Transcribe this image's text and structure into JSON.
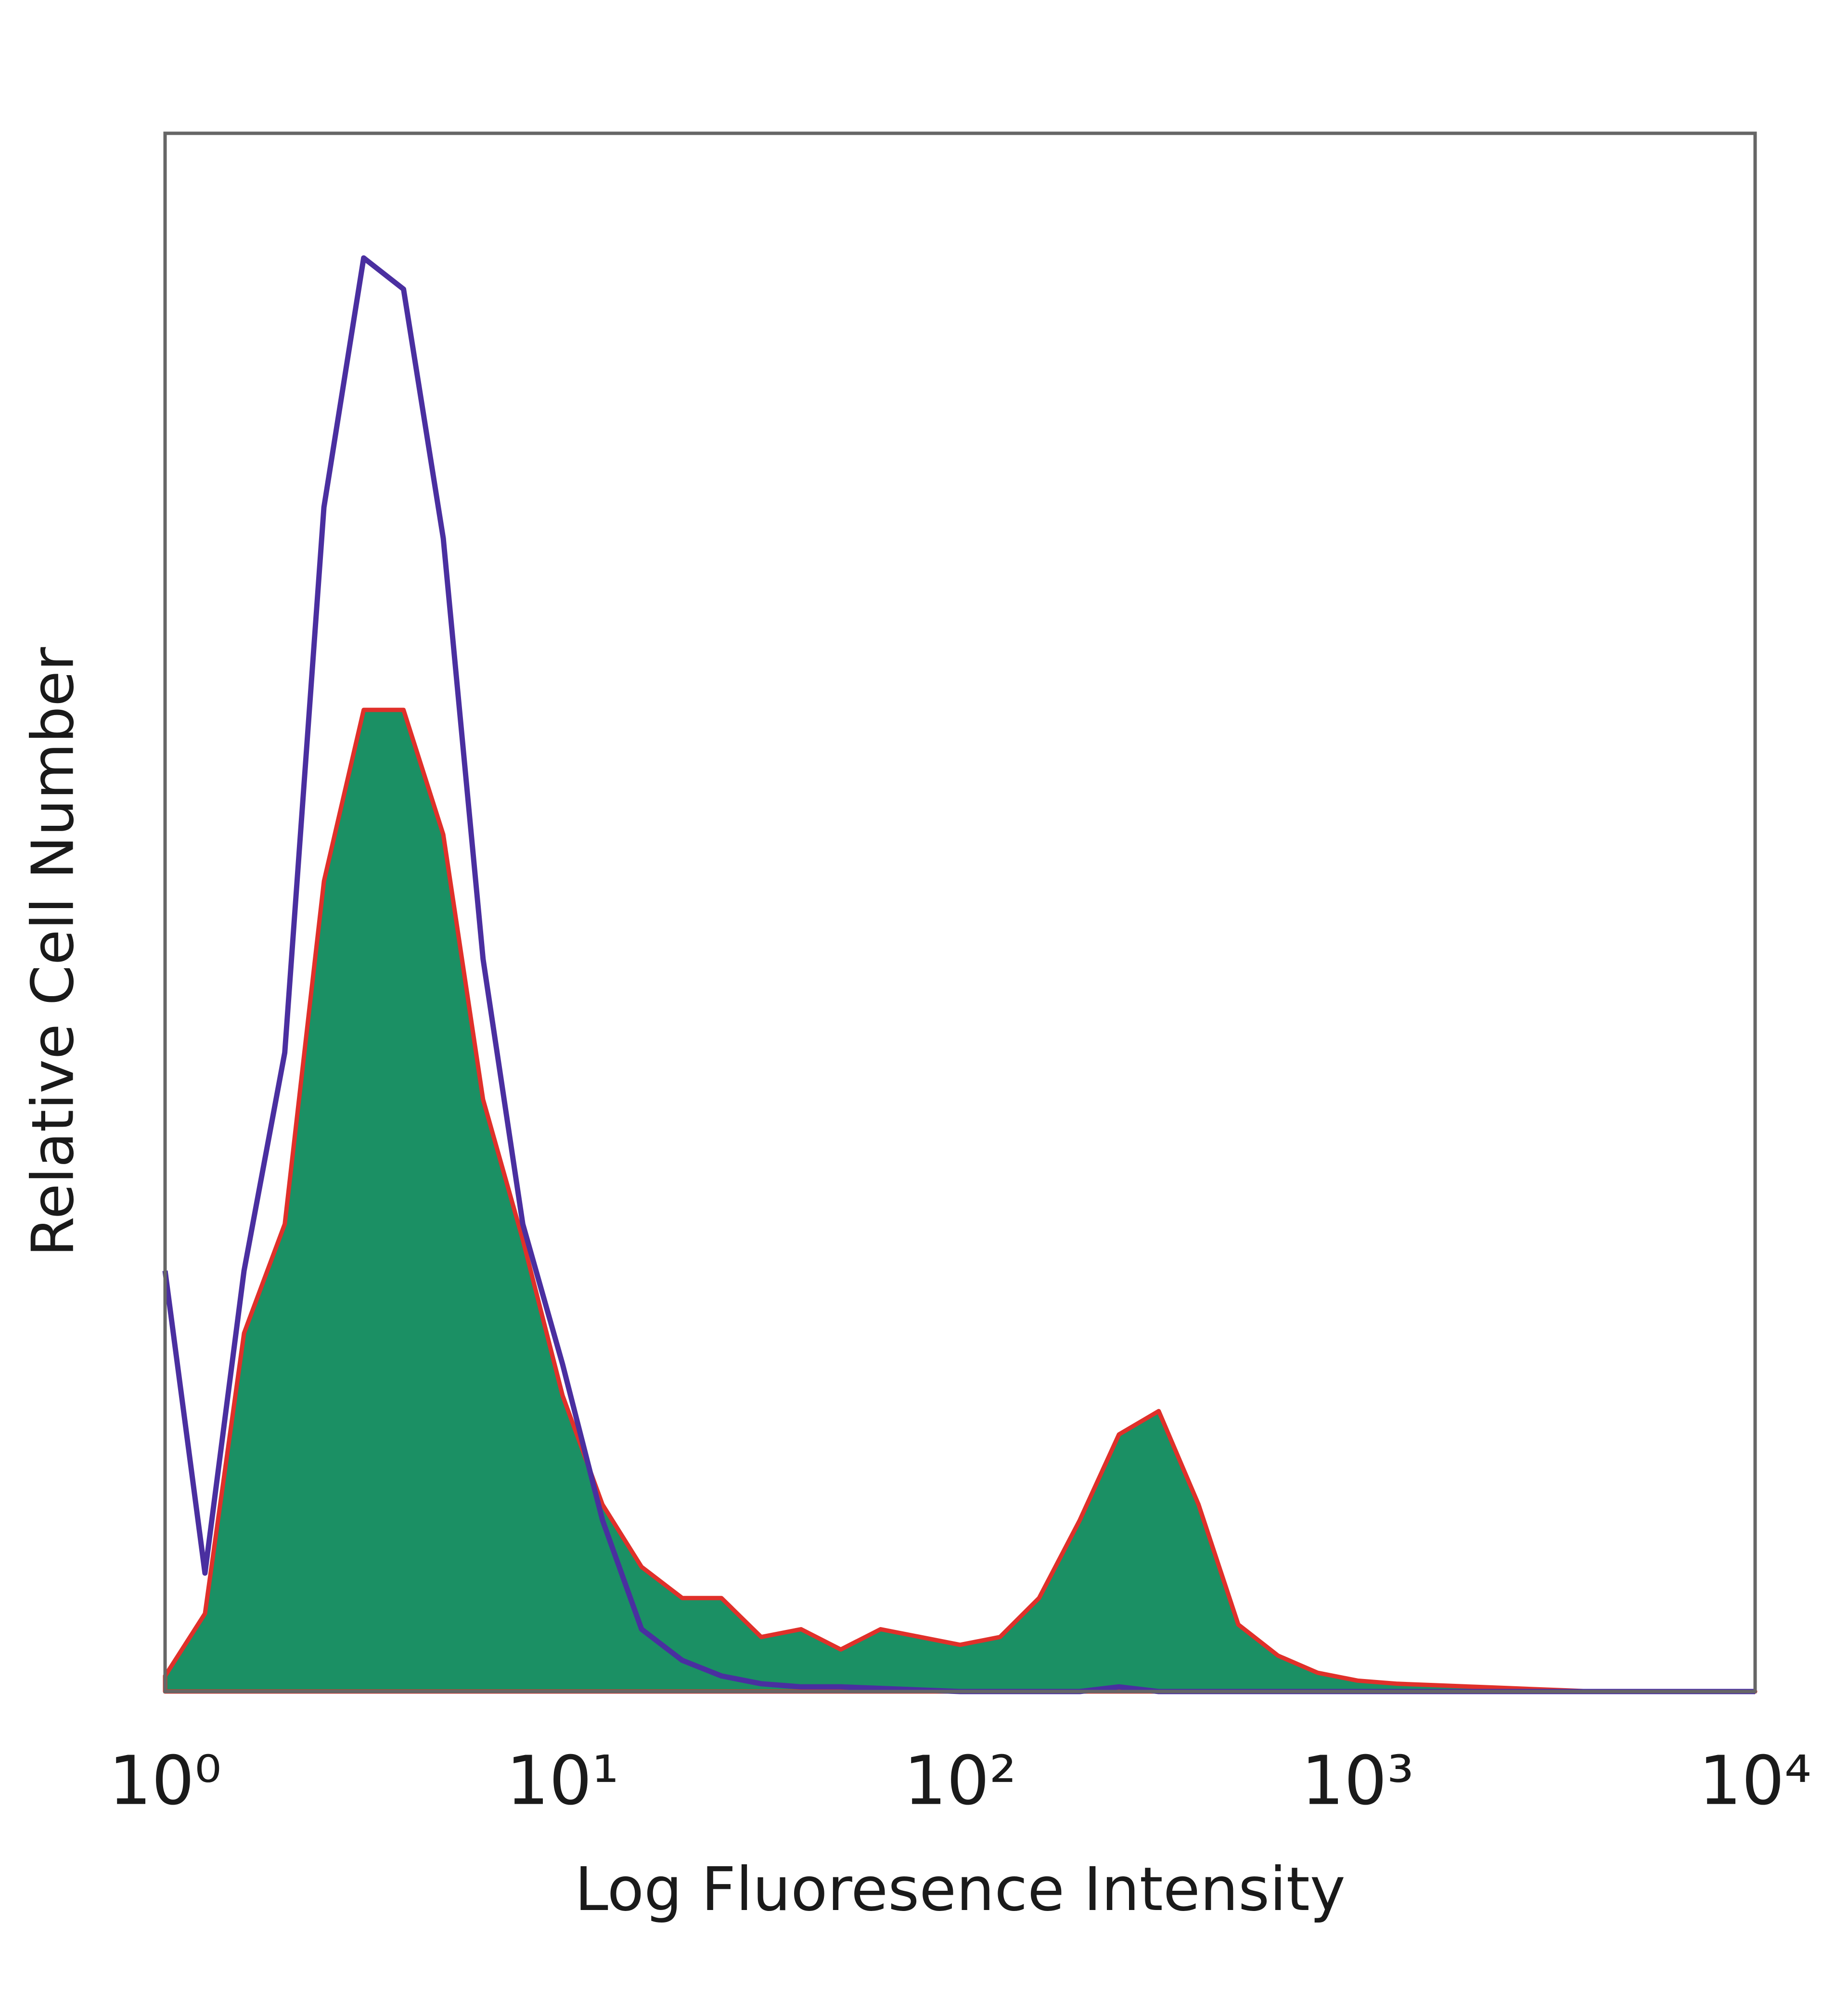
{
  "chart_data": {
    "type": "line",
    "y_label": "Relative Cell Number",
    "x_label": "Log Fluoresence Intensity",
    "x_log": true,
    "xlim": [
      1,
      10000
    ],
    "xticks": [
      {
        "value": 1,
        "label": "10⁰"
      },
      {
        "value": 10,
        "label": "10¹"
      },
      {
        "value": 100,
        "label": "10²"
      },
      {
        "value": 1000,
        "label": "10³"
      },
      {
        "value": 10000,
        "label": "10⁴"
      }
    ],
    "ylim": [
      0,
      100
    ],
    "x": [
      1,
      1.26,
      1.58,
      2,
      2.51,
      3.16,
      3.98,
      5.01,
      6.31,
      7.94,
      10,
      12.6,
      15.8,
      20,
      25.1,
      31.6,
      39.8,
      50.1,
      63.1,
      79.4,
      100,
      126,
      158,
      200,
      251,
      316,
      398,
      501,
      631,
      794,
      1000,
      1259,
      1585,
      1995,
      2512,
      3162,
      3981,
      5012,
      6310,
      7943,
      10000
    ],
    "series": [
      {
        "color": "#1b9064",
        "edgecolor": "#e0302a",
        "fill": true,
        "values": [
          1,
          5,
          23,
          30,
          52,
          63,
          63,
          55,
          38,
          29,
          19,
          12,
          8,
          6,
          6,
          3.5,
          4,
          2.7,
          4,
          3.5,
          3,
          3.5,
          6,
          11,
          16.5,
          18,
          12,
          4.3,
          2.3,
          1.2,
          0.7,
          0.5,
          0.4,
          0.3,
          0.2,
          0.1,
          0,
          0,
          0,
          0,
          0
        ]
      },
      {
        "color": "#4a2fa0",
        "fill": false,
        "values": [
          27,
          7.6,
          27,
          41,
          76,
          92,
          90,
          74,
          47,
          30,
          21,
          11,
          4,
          2,
          1,
          0.5,
          0.3,
          0.3,
          0.2,
          0.1,
          0,
          0,
          0,
          0,
          0.3,
          0,
          0,
          0,
          0,
          0,
          0,
          0,
          0,
          0,
          0,
          0,
          0,
          0,
          0,
          0,
          0
        ]
      }
    ]
  }
}
